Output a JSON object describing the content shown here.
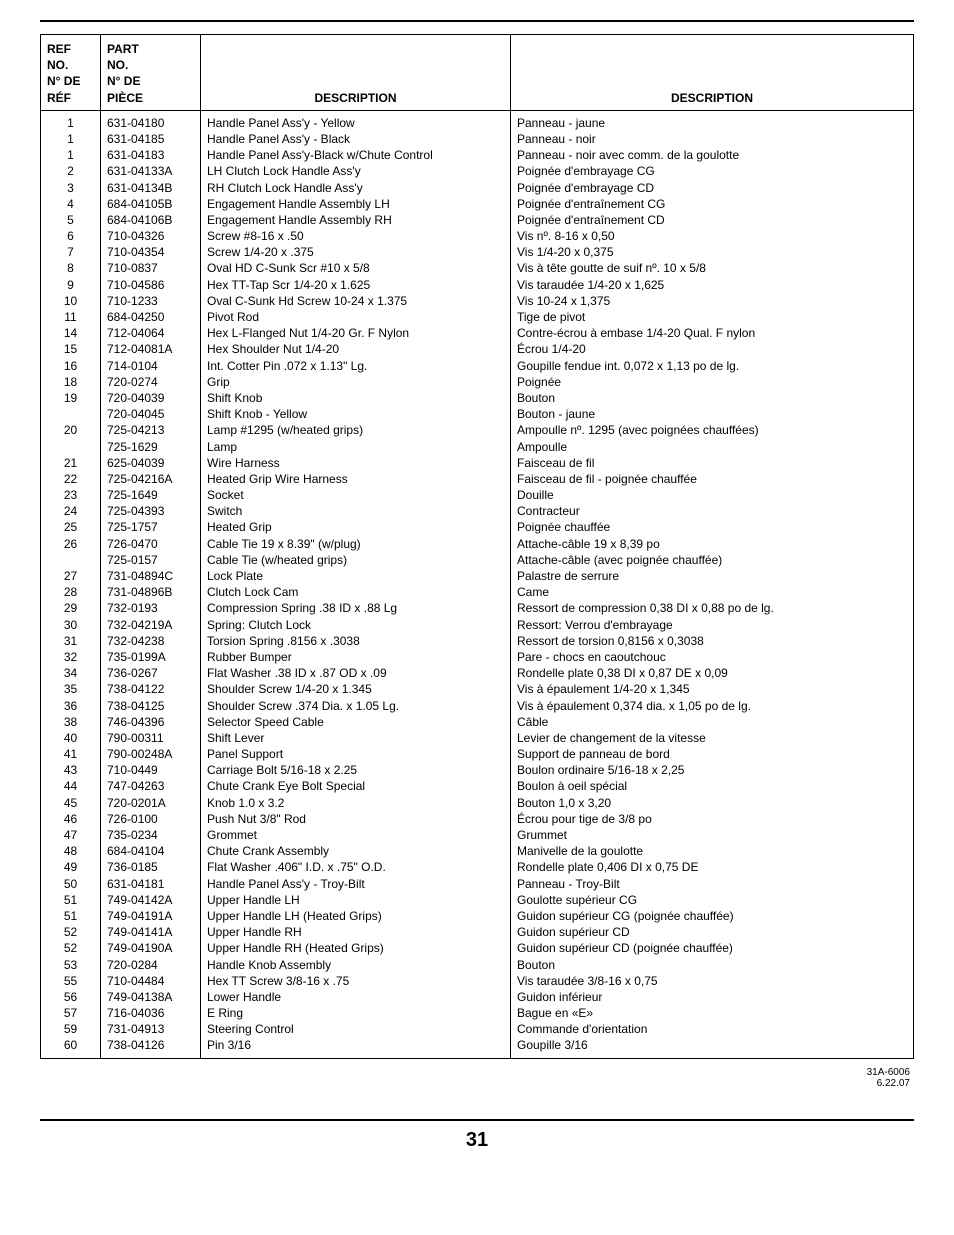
{
  "headers": {
    "ref": "REF\nNO.",
    "ref_fr": "N° DE\nRÉF",
    "part": "PART\nNO.",
    "part_fr": "N° DE\nPIÈCE",
    "desc1": "DESCRIPTION",
    "desc2": "DESCRIPTION"
  },
  "rows": [
    {
      "ref": "1",
      "part": "631-04180",
      "en": "Handle Panel Ass'y - Yellow",
      "fr": "Panneau - jaune"
    },
    {
      "ref": "1",
      "part": "631-04185",
      "en": "Handle Panel Ass'y - Black",
      "fr": "Panneau - noir"
    },
    {
      "ref": "1",
      "part": "631-04183",
      "en": "Handle Panel Ass'y-Black w/Chute Control",
      "fr": "Panneau - noir avec comm. de la goulotte"
    },
    {
      "ref": "2",
      "part": "631-04133A",
      "en": "LH Clutch Lock Handle Ass'y",
      "fr": "Poignée d'embrayage CG"
    },
    {
      "ref": "3",
      "part": "631-04134B",
      "en": "RH Clutch Lock Handle Ass'y",
      "fr": "Poignée d'embrayage CD"
    },
    {
      "ref": "4",
      "part": "684-04105B",
      "en": "Engagement Handle Assembly LH",
      "fr": "Poignée d'entraînement CG"
    },
    {
      "ref": "5",
      "part": "684-04106B",
      "en": "Engagement Handle Assembly RH",
      "fr": "Poignée d'entraînement CD"
    },
    {
      "ref": "6",
      "part": "710-04326",
      "en": "Screw #8-16 x .50",
      "fr": "Vis nº. 8-16 x 0,50"
    },
    {
      "ref": "7",
      "part": "710-04354",
      "en": "Screw 1/4-20 x .375",
      "fr": "Vis 1/4-20 x 0,375"
    },
    {
      "ref": "8",
      "part": "710-0837",
      "en": "Oval HD C-Sunk Scr #10 x 5/8",
      "fr": "Vis à tête goutte de suif nº. 10 x 5/8"
    },
    {
      "ref": "9",
      "part": "710-04586",
      "en": "Hex TT-Tap Scr 1/4-20 x 1.625",
      "fr": "Vis taraudée 1/4-20 x 1,625"
    },
    {
      "ref": "10",
      "part": "710-1233",
      "en": "Oval C-Sunk Hd Screw 10-24 x 1.375",
      "fr": "Vis 10-24 x 1,375"
    },
    {
      "ref": "11",
      "part": "684-04250",
      "en": "Pivot Rod",
      "fr": "Tige de pivot"
    },
    {
      "ref": "14",
      "part": "712-04064",
      "en": "Hex L-Flanged Nut 1/4-20 Gr. F Nylon",
      "fr": "Contre-écrou à embase 1/4-20 Qual. F nylon"
    },
    {
      "ref": "15",
      "part": "712-04081A",
      "en": "Hex Shoulder Nut 1/4-20",
      "fr": "Écrou 1/4-20"
    },
    {
      "ref": "16",
      "part": "714-0104",
      "en": "Int. Cotter Pin .072 x 1.13\" Lg.",
      "fr": "Goupille fendue int. 0,072 x 1,13 po de lg."
    },
    {
      "ref": "18",
      "part": "720-0274",
      "en": "Grip",
      "fr": "Poignée"
    },
    {
      "ref": "19",
      "part": "720-04039",
      "en": "Shift Knob",
      "fr": "Bouton"
    },
    {
      "ref": "",
      "part": "720-04045",
      "en": "Shift Knob - Yellow",
      "fr": "Bouton - jaune"
    },
    {
      "ref": "20",
      "part": "725-04213",
      "en": "Lamp #1295 (w/heated grips)",
      "fr": "Ampoulle nº. 1295 (avec poignées chauffées)"
    },
    {
      "ref": "",
      "part": "725-1629",
      "en": "Lamp",
      "fr": "Ampoulle"
    },
    {
      "ref": "21",
      "part": "625-04039",
      "en": "Wire Harness",
      "fr": "Faisceau de fil"
    },
    {
      "ref": "22",
      "part": "725-04216A",
      "en": "Heated Grip Wire Harness",
      "fr": "Faisceau de fil - poignée chauffée"
    },
    {
      "ref": "23",
      "part": "725-1649",
      "en": "Socket",
      "fr": "Douille"
    },
    {
      "ref": "24",
      "part": "725-04393",
      "en": "Switch",
      "fr": "Contracteur"
    },
    {
      "ref": "25",
      "part": "725-1757",
      "en": "Heated Grip",
      "fr": "Poignée chauffée"
    },
    {
      "ref": "26",
      "part": "726-0470",
      "en": "Cable Tie 19 x 8.39\" (w/plug)",
      "fr": "Attache-câble 19 x 8,39 po"
    },
    {
      "ref": "",
      "part": "725-0157",
      "en": "Cable Tie (w/heated grips)",
      "fr": "Attache-câble (avec poignée chauffée)"
    },
    {
      "ref": "27",
      "part": "731-04894C",
      "en": "Lock Plate",
      "fr": "Palastre de serrure"
    },
    {
      "ref": "28",
      "part": "731-04896B",
      "en": "Clutch Lock Cam",
      "fr": "Came"
    },
    {
      "ref": "29",
      "part": "732-0193",
      "en": "Compression Spring .38 ID x .88 Lg",
      "fr": "Ressort de compression 0,38 DI x 0,88 po de lg."
    },
    {
      "ref": "30",
      "part": "732-04219A",
      "en": "Spring: Clutch Lock",
      "fr": "Ressort: Verrou d'embrayage"
    },
    {
      "ref": "31",
      "part": "732-04238",
      "en": "Torsion Spring .8156 x .3038",
      "fr": "Ressort de torsion 0,8156 x 0,3038"
    },
    {
      "ref": "32",
      "part": "735-0199A",
      "en": "Rubber Bumper",
      "fr": "Pare - chocs en caoutchouc"
    },
    {
      "ref": "34",
      "part": "736-0267",
      "en": "Flat Washer .38 ID x .87 OD x .09",
      "fr": "Rondelle plate 0,38 DI x 0,87 DE x 0,09"
    },
    {
      "ref": "35",
      "part": "738-04122",
      "en": "Shoulder Screw 1/4-20 x 1.345",
      "fr": "Vis à épaulement 1/4-20 x 1,345"
    },
    {
      "ref": "36",
      "part": "738-04125",
      "en": "Shoulder Screw .374 Dia. x 1.05 Lg.",
      "fr": "Vis à épaulement 0,374 dia. x 1,05 po de lg."
    },
    {
      "ref": "38",
      "part": "746-04396",
      "en": "Selector Speed Cable",
      "fr": "Câble"
    },
    {
      "ref": "40",
      "part": "790-00311",
      "en": "Shift Lever",
      "fr": "Levier de changement de la vitesse"
    },
    {
      "ref": "41",
      "part": "790-00248A",
      "en": "Panel Support",
      "fr": "Support de panneau de bord"
    },
    {
      "ref": "43",
      "part": "710-0449",
      "en": "Carriage Bolt 5/16-18 x 2.25",
      "fr": "Boulon ordinaire 5/16-18 x 2,25"
    },
    {
      "ref": "44",
      "part": "747-04263",
      "en": "Chute Crank Eye Bolt Special",
      "fr": "Boulon à oeil spécial"
    },
    {
      "ref": "45",
      "part": "720-0201A",
      "en": "Knob 1.0 x 3.2",
      "fr": "Bouton 1,0 x 3,20"
    },
    {
      "ref": "46",
      "part": "726-0100",
      "en": "Push Nut 3/8\" Rod",
      "fr": "Écrou pour tige de 3/8 po"
    },
    {
      "ref": "47",
      "part": "735-0234",
      "en": "Grommet",
      "fr": "Grummet"
    },
    {
      "ref": "48",
      "part": "684-04104",
      "en": "Chute Crank Assembly",
      "fr": "Manivelle de la goulotte"
    },
    {
      "ref": "49",
      "part": "736-0185",
      "en": "Flat Washer .406\" I.D. x .75\" O.D.",
      "fr": "Rondelle plate 0,406 DI x 0,75 DE"
    },
    {
      "ref": "50",
      "part": "631-04181",
      "en": "Handle Panel Ass'y - Troy-Bilt",
      "fr": "Panneau - Troy-Bilt"
    },
    {
      "ref": "51",
      "part": "749-04142A",
      "en": "Upper Handle LH",
      "fr": "Goulotte supérieur CG"
    },
    {
      "ref": "51",
      "part": "749-04191A",
      "en": "Upper Handle LH (Heated Grips)",
      "fr": "Guidon supérieur CG (poignée chauffée)"
    },
    {
      "ref": "52",
      "part": "749-04141A",
      "en": "Upper Handle RH",
      "fr": "Guidon supérieur CD"
    },
    {
      "ref": "52",
      "part": "749-04190A",
      "en": "Upper Handle RH (Heated Grips)",
      "fr": "Guidon supérieur CD (poignée chauffée)"
    },
    {
      "ref": "53",
      "part": "720-0284",
      "en": "Handle Knob Assembly",
      "fr": "Bouton"
    },
    {
      "ref": "55",
      "part": "710-04484",
      "en": "Hex TT Screw 3/8-16 x .75",
      "fr": "Vis taraudée 3/8-16 x 0,75"
    },
    {
      "ref": "56",
      "part": "749-04138A",
      "en": "Lower Handle",
      "fr": "Guidon inférieur"
    },
    {
      "ref": "57",
      "part": "716-04036",
      "en": "E Ring",
      "fr": "Bague en «E»"
    },
    {
      "ref": "59",
      "part": "731-04913",
      "en": "Steering Control",
      "fr": "Commande d'orientation"
    },
    {
      "ref": "60",
      "part": "738-04126",
      "en": "Pin 3/16",
      "fr": "Goupille 3/16"
    }
  ],
  "footer": {
    "code1": "31A-6006",
    "code2": "6.22.07"
  },
  "page_number": "31"
}
